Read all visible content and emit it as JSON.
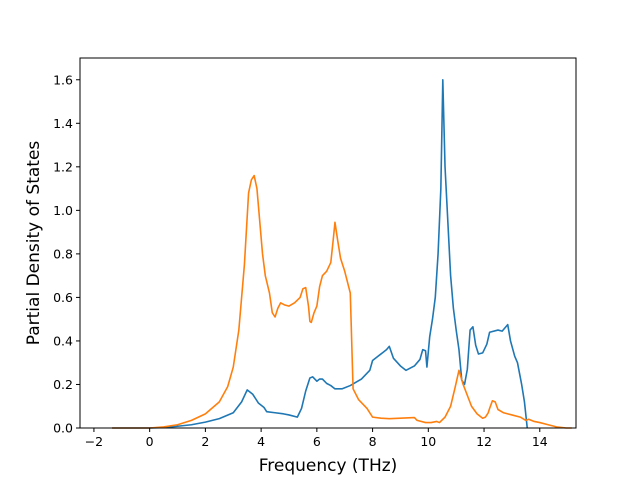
{
  "chart_data": {
    "type": "line",
    "title": "",
    "xlabel": "Frequency (THz)",
    "ylabel": "Partial Density of States",
    "xlim": [
      -2.5,
      15.3
    ],
    "ylim": [
      0,
      1.7
    ],
    "x_ticks": [
      -2,
      0,
      2,
      4,
      6,
      8,
      10,
      12,
      14
    ],
    "x_tick_labels": [
      "−2",
      "0",
      "2",
      "4",
      "6",
      "8",
      "10",
      "12",
      "14"
    ],
    "y_ticks": [
      0,
      0.2,
      0.4,
      0.6,
      0.8,
      1.0,
      1.2,
      1.4,
      1.6
    ],
    "y_tick_labels": [
      "0.0",
      "0.2",
      "0.4",
      "0.6",
      "0.8",
      "1.0",
      "1.2",
      "1.4",
      "1.6"
    ],
    "grid": false,
    "legend": "none",
    "series": [
      {
        "color": "#1f77b4",
        "points": [
          [
            -1.35,
            0.0
          ],
          [
            0.0,
            0.0
          ],
          [
            0.5,
            0.002
          ],
          [
            1.0,
            0.008
          ],
          [
            1.5,
            0.015
          ],
          [
            2.0,
            0.027
          ],
          [
            2.5,
            0.043
          ],
          [
            3.0,
            0.07
          ],
          [
            3.3,
            0.12
          ],
          [
            3.5,
            0.175
          ],
          [
            3.7,
            0.155
          ],
          [
            3.9,
            0.115
          ],
          [
            4.1,
            0.095
          ],
          [
            4.2,
            0.075
          ],
          [
            4.5,
            0.07
          ],
          [
            4.8,
            0.065
          ],
          [
            5.0,
            0.06
          ],
          [
            5.3,
            0.05
          ],
          [
            5.45,
            0.09
          ],
          [
            5.6,
            0.17
          ],
          [
            5.75,
            0.23
          ],
          [
            5.85,
            0.235
          ],
          [
            6.0,
            0.215
          ],
          [
            6.1,
            0.225
          ],
          [
            6.2,
            0.225
          ],
          [
            6.35,
            0.205
          ],
          [
            6.5,
            0.195
          ],
          [
            6.65,
            0.18
          ],
          [
            6.9,
            0.18
          ],
          [
            7.2,
            0.195
          ],
          [
            7.6,
            0.225
          ],
          [
            7.9,
            0.265
          ],
          [
            8.0,
            0.31
          ],
          [
            8.2,
            0.33
          ],
          [
            8.5,
            0.36
          ],
          [
            8.6,
            0.375
          ],
          [
            8.75,
            0.32
          ],
          [
            9.0,
            0.285
          ],
          [
            9.2,
            0.265
          ],
          [
            9.5,
            0.285
          ],
          [
            9.7,
            0.315
          ],
          [
            9.8,
            0.36
          ],
          [
            9.9,
            0.355
          ],
          [
            9.95,
            0.28
          ],
          [
            10.05,
            0.42
          ],
          [
            10.15,
            0.5
          ],
          [
            10.25,
            0.6
          ],
          [
            10.35,
            0.8
          ],
          [
            10.45,
            1.1
          ],
          [
            10.52,
            1.6
          ],
          [
            10.6,
            1.2
          ],
          [
            10.7,
            0.95
          ],
          [
            10.8,
            0.7
          ],
          [
            10.9,
            0.55
          ],
          [
            11.0,
            0.45
          ],
          [
            11.1,
            0.36
          ],
          [
            11.2,
            0.22
          ],
          [
            11.3,
            0.2
          ],
          [
            11.4,
            0.27
          ],
          [
            11.5,
            0.45
          ],
          [
            11.6,
            0.465
          ],
          [
            11.7,
            0.38
          ],
          [
            11.8,
            0.34
          ],
          [
            11.95,
            0.345
          ],
          [
            12.1,
            0.385
          ],
          [
            12.2,
            0.44
          ],
          [
            12.5,
            0.45
          ],
          [
            12.65,
            0.445
          ],
          [
            12.85,
            0.475
          ],
          [
            12.95,
            0.4
          ],
          [
            13.1,
            0.33
          ],
          [
            13.2,
            0.3
          ],
          [
            13.35,
            0.2
          ],
          [
            13.45,
            0.12
          ],
          [
            13.55,
            0.0
          ]
        ]
      },
      {
        "color": "#ff7f0e",
        "points": [
          [
            -1.35,
            0.0
          ],
          [
            0.0,
            0.0
          ],
          [
            0.5,
            0.005
          ],
          [
            1.0,
            0.015
          ],
          [
            1.5,
            0.035
          ],
          [
            2.0,
            0.065
          ],
          [
            2.5,
            0.12
          ],
          [
            2.8,
            0.19
          ],
          [
            3.0,
            0.28
          ],
          [
            3.2,
            0.45
          ],
          [
            3.4,
            0.75
          ],
          [
            3.55,
            1.08
          ],
          [
            3.65,
            1.14
          ],
          [
            3.75,
            1.16
          ],
          [
            3.85,
            1.1
          ],
          [
            3.95,
            0.95
          ],
          [
            4.05,
            0.8
          ],
          [
            4.15,
            0.7
          ],
          [
            4.3,
            0.62
          ],
          [
            4.4,
            0.53
          ],
          [
            4.5,
            0.51
          ],
          [
            4.6,
            0.55
          ],
          [
            4.7,
            0.575
          ],
          [
            4.85,
            0.565
          ],
          [
            5.0,
            0.56
          ],
          [
            5.2,
            0.575
          ],
          [
            5.4,
            0.6
          ],
          [
            5.5,
            0.64
          ],
          [
            5.6,
            0.645
          ],
          [
            5.7,
            0.56
          ],
          [
            5.75,
            0.49
          ],
          [
            5.8,
            0.485
          ],
          [
            5.9,
            0.53
          ],
          [
            6.0,
            0.56
          ],
          [
            6.1,
            0.65
          ],
          [
            6.2,
            0.7
          ],
          [
            6.35,
            0.72
          ],
          [
            6.5,
            0.76
          ],
          [
            6.6,
            0.88
          ],
          [
            6.65,
            0.945
          ],
          [
            6.75,
            0.86
          ],
          [
            6.85,
            0.78
          ],
          [
            7.0,
            0.72
          ],
          [
            7.2,
            0.62
          ],
          [
            7.3,
            0.18
          ],
          [
            7.5,
            0.13
          ],
          [
            7.8,
            0.09
          ],
          [
            8.0,
            0.05
          ],
          [
            8.3,
            0.045
          ],
          [
            8.6,
            0.043
          ],
          [
            9.0,
            0.045
          ],
          [
            9.5,
            0.048
          ],
          [
            9.6,
            0.035
          ],
          [
            9.9,
            0.025
          ],
          [
            10.1,
            0.025
          ],
          [
            10.3,
            0.03
          ],
          [
            10.4,
            0.025
          ],
          [
            10.6,
            0.05
          ],
          [
            10.8,
            0.1
          ],
          [
            10.95,
            0.18
          ],
          [
            11.1,
            0.265
          ],
          [
            11.25,
            0.2
          ],
          [
            11.4,
            0.15
          ],
          [
            11.55,
            0.1
          ],
          [
            11.75,
            0.065
          ],
          [
            11.95,
            0.045
          ],
          [
            12.05,
            0.05
          ],
          [
            12.15,
            0.07
          ],
          [
            12.2,
            0.09
          ],
          [
            12.3,
            0.125
          ],
          [
            12.4,
            0.12
          ],
          [
            12.5,
            0.085
          ],
          [
            12.7,
            0.07
          ],
          [
            13.0,
            0.06
          ],
          [
            13.3,
            0.05
          ],
          [
            13.5,
            0.035
          ],
          [
            13.6,
            0.04
          ],
          [
            13.8,
            0.03
          ],
          [
            14.0,
            0.025
          ],
          [
            14.3,
            0.015
          ],
          [
            14.6,
            0.005
          ],
          [
            14.95,
            0.0
          ],
          [
            15.15,
            0.0
          ]
        ]
      }
    ]
  }
}
